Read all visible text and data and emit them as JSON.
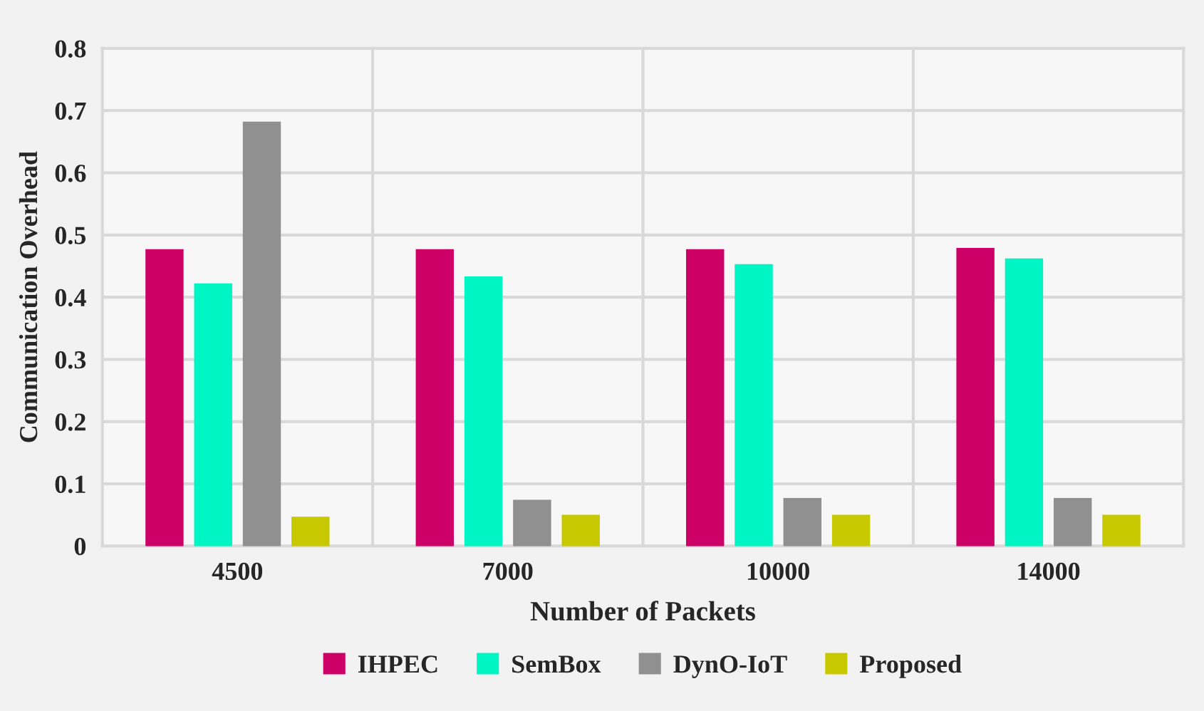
{
  "chart_data": {
    "type": "bar",
    "xlabel": "Number of Packets",
    "ylabel": "Communication Overhead",
    "categories": [
      "4500",
      "7000",
      "10000",
      "14000"
    ],
    "series": [
      {
        "name": "IHPEC",
        "color": "#cc0066",
        "values": [
          0.476,
          0.476,
          0.476,
          0.478
        ]
      },
      {
        "name": "SemBox",
        "color": "#00f5c4",
        "values": [
          0.421,
          0.432,
          0.452,
          0.461
        ]
      },
      {
        "name": "DynO-IoT",
        "color": "#909090",
        "values": [
          0.681,
          0.073,
          0.076,
          0.076
        ]
      },
      {
        "name": "Proposed",
        "color": "#c8c800",
        "values": [
          0.046,
          0.049,
          0.049,
          0.049
        ]
      }
    ],
    "ylim": [
      0,
      0.8
    ],
    "yticks": [
      0,
      0.1,
      0.2,
      0.3,
      0.4,
      0.5,
      0.6,
      0.7,
      0.8
    ],
    "grid": true,
    "legend": "bottom"
  }
}
